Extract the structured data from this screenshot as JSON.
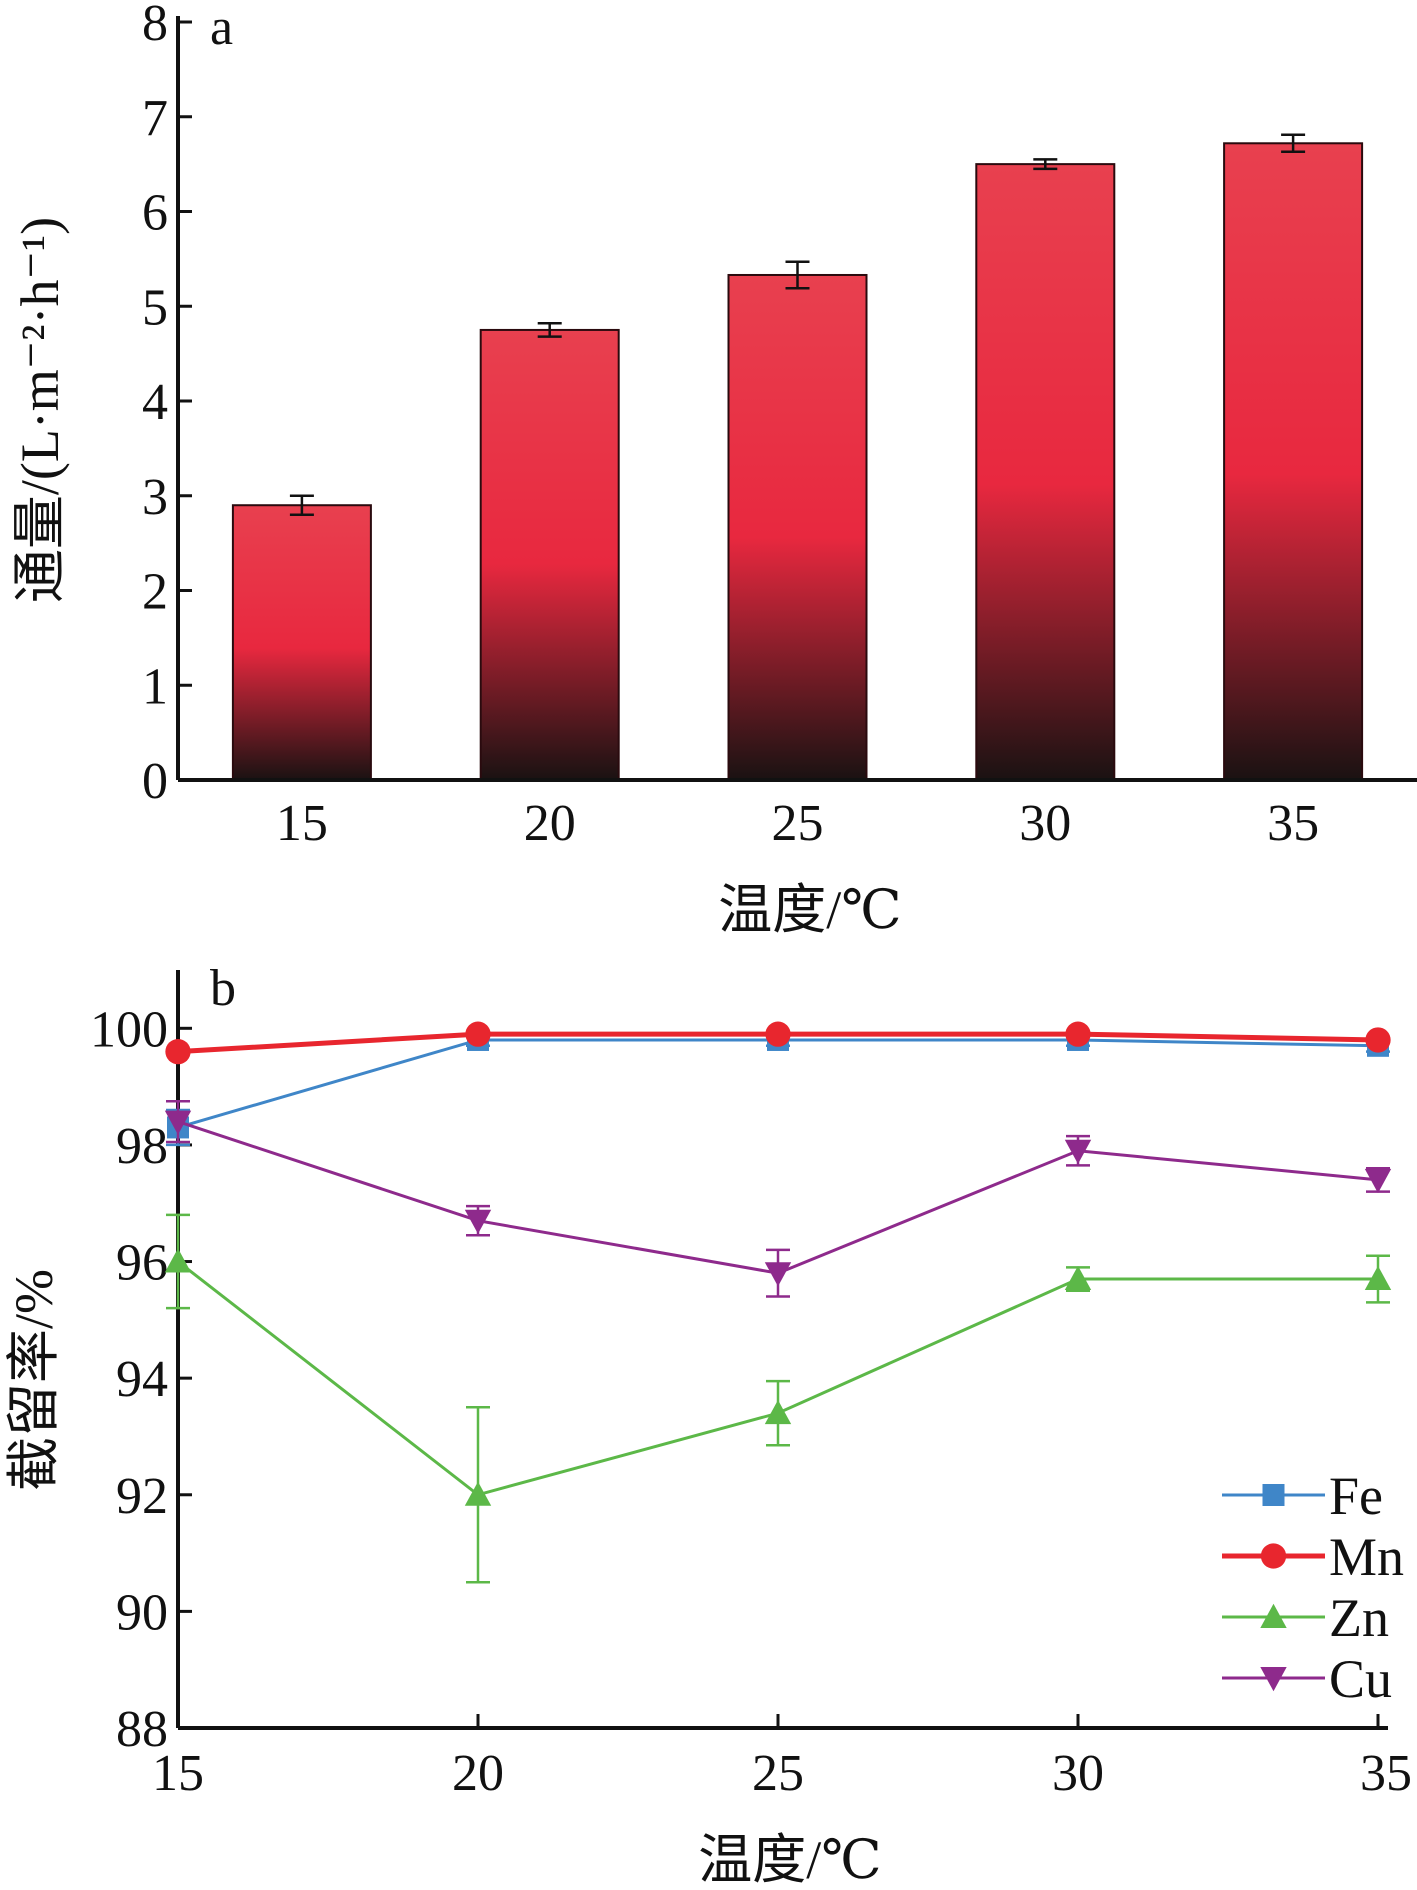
{
  "chart_data": [
    {
      "type": "bar",
      "panel_label": "a",
      "categories": [
        "15",
        "20",
        "25",
        "30",
        "35"
      ],
      "values": [
        2.9,
        4.75,
        5.33,
        6.5,
        6.72
      ],
      "errors": [
        0.1,
        0.07,
        0.14,
        0.05,
        0.09
      ],
      "xlabel": "温度/℃",
      "ylabel": "通量/(L·m⁻²·h⁻¹)",
      "ylim": [
        0,
        8
      ],
      "yticks": [
        0,
        1,
        2,
        3,
        4,
        5,
        6,
        7,
        8
      ],
      "bar_gradient": {
        "top": "#e8404f",
        "mid": "#e8283f",
        "bottom": "#1a1212"
      },
      "grid": false
    },
    {
      "type": "line",
      "panel_label": "b",
      "x": [
        15,
        20,
        25,
        30,
        35
      ],
      "xticks": [
        "15",
        "20",
        "25",
        "30",
        "35"
      ],
      "xlim": [
        15,
        35
      ],
      "xlabel": "温度/℃",
      "ylabel": "截留率/%",
      "ylim": [
        88,
        101
      ],
      "yticks": [
        88,
        90,
        92,
        94,
        96,
        98,
        100
      ],
      "grid": false,
      "legend_position": "bottom-right",
      "series": [
        {
          "name": "Fe",
          "values": [
            98.3,
            99.8,
            99.8,
            99.8,
            99.7
          ],
          "errors": [
            0.3,
            0.1,
            0.1,
            0.1,
            0.1
          ],
          "color": "#3f86c8",
          "marker": "square"
        },
        {
          "name": "Mn",
          "values": [
            99.6,
            99.9,
            99.9,
            99.9,
            99.8
          ],
          "errors": [
            0,
            0,
            0,
            0,
            0
          ],
          "color": "#e8262e",
          "marker": "circle"
        },
        {
          "name": "Zn",
          "values": [
            96.0,
            92.0,
            93.4,
            95.7,
            95.7
          ],
          "errors": [
            0.8,
            1.5,
            0.55,
            0.2,
            0.4
          ],
          "color": "#5cb848",
          "marker": "triangle-up"
        },
        {
          "name": "Cu",
          "values": [
            98.4,
            96.7,
            95.8,
            97.9,
            97.4
          ],
          "errors": [
            0.35,
            0.25,
            0.4,
            0.25,
            0.2
          ],
          "color": "#8e2a8c",
          "marker": "triangle-down"
        }
      ]
    }
  ]
}
